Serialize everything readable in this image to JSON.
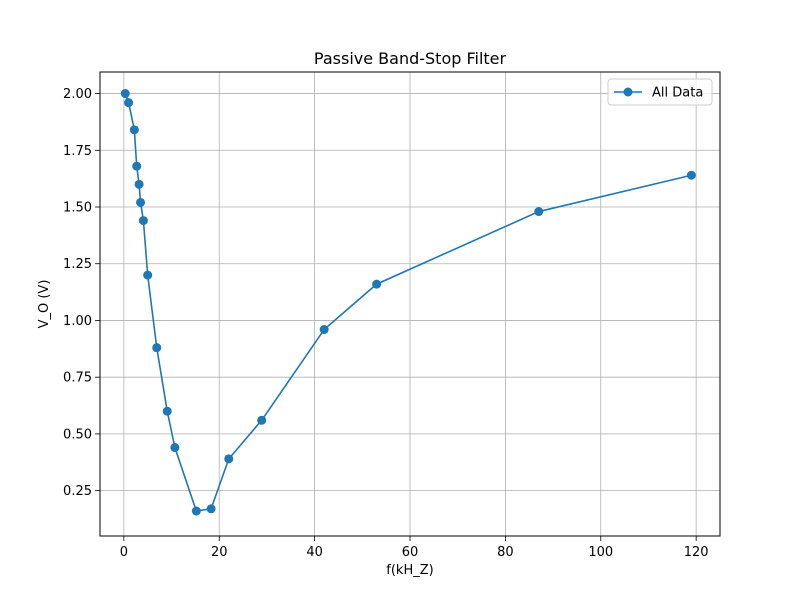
{
  "chart_data": {
    "type": "line",
    "title": "Passive Band-Stop Filter",
    "xlabel": "f(kH_Z)",
    "ylabel": "V_O (V)",
    "xlim": [
      -5,
      125
    ],
    "ylim": [
      0.05,
      2.095
    ],
    "xticks": [
      0,
      20,
      40,
      60,
      80,
      100,
      120
    ],
    "yticks": [
      0.25,
      0.5,
      0.75,
      1.0,
      1.25,
      1.5,
      1.75,
      2.0
    ],
    "xtick_labels": [
      "0",
      "20",
      "40",
      "60",
      "80",
      "100",
      "120"
    ],
    "ytick_labels": [
      "0.25",
      "0.50",
      "0.75",
      "1.00",
      "1.25",
      "1.50",
      "1.75",
      "2.00"
    ],
    "grid": true,
    "legend_position": "top-right",
    "marker": "circle",
    "series": [
      {
        "name": "All Data",
        "color": "#1f77b4",
        "x": [
          0.3,
          1.0,
          2.2,
          2.7,
          3.2,
          3.5,
          4.1,
          5.0,
          6.9,
          9.1,
          10.7,
          15.2,
          18.3,
          22.0,
          28.9,
          42.0,
          53.0,
          87.0,
          119.0
        ],
        "y": [
          2.0,
          1.96,
          1.84,
          1.68,
          1.6,
          1.52,
          1.44,
          1.2,
          0.88,
          0.6,
          0.44,
          0.16,
          0.17,
          0.39,
          0.56,
          0.96,
          1.16,
          1.48,
          1.64
        ]
      }
    ]
  }
}
